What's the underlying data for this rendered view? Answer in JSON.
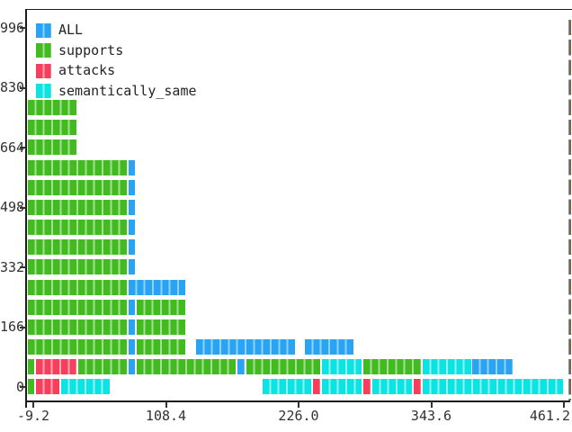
{
  "palette": {
    "ALL": {
      "main": "#29a3f2",
      "light": "#93d2f8"
    },
    "supports": {
      "main": "#41bb20",
      "light": "#a6de94"
    },
    "attacks": {
      "main": "#f83e5d",
      "light": "#fba9b5"
    },
    "semantically_same": {
      "main": "#0ce3e3",
      "light": "#94f1ef"
    },
    "axis": "#1c1c1c",
    "tick_text": "#323232",
    "right_frame_brown": "#9a5b2b",
    "right_frame_blue": "#4a9fd8"
  },
  "legend": {
    "items": [
      {
        "name": "all",
        "label": "ALL",
        "category": "ALL"
      },
      {
        "name": "supports",
        "label": "supports",
        "category": "supports"
      },
      {
        "name": "attacks",
        "label": "attacks",
        "category": "attacks"
      },
      {
        "name": "semantically-same",
        "label": "semantically_same",
        "category": "semantically_same"
      }
    ]
  },
  "chart_data": {
    "type": "bar",
    "orientation": "horizontal",
    "style": "unit-cell blocks (terminal/plotext-like)",
    "title": "",
    "xlabel": "",
    "ylabel": "",
    "grid": false,
    "legend_position": "upper-left",
    "x_axis": {
      "tick_labels": [
        "-9.2",
        "108.4",
        "226.0",
        "343.6",
        "461.2"
      ],
      "tick_values": [
        -9.2,
        108.4,
        226.0,
        343.6,
        461.2
      ],
      "range": [
        -9.2,
        461.2
      ]
    },
    "y_axis": {
      "tick_labels": [
        "996",
        "830",
        "664",
        "498",
        "332",
        "166",
        "0"
      ],
      "tick_values": [
        996,
        830,
        664,
        498,
        332,
        166,
        0
      ],
      "range": [
        0,
        996
      ]
    },
    "cell_value_x": 7.4,
    "rows_order": "top_to_bottom",
    "rows": [
      {
        "y_value": 774.7,
        "segments": [
          {
            "category": "supports",
            "cells": 6
          }
        ]
      },
      {
        "y_value": 719.3,
        "segments": [
          {
            "category": "supports",
            "cells": 6
          }
        ]
      },
      {
        "y_value": 664.0,
        "segments": [
          {
            "category": "supports",
            "cells": 6
          }
        ]
      },
      {
        "y_value": 608.7,
        "segments": [
          {
            "category": "supports",
            "cells": 12
          },
          {
            "category": "ALL",
            "cells": 1
          }
        ]
      },
      {
        "y_value": 553.3,
        "segments": [
          {
            "category": "supports",
            "cells": 12
          },
          {
            "category": "ALL",
            "cells": 1
          }
        ]
      },
      {
        "y_value": 498.0,
        "segments": [
          {
            "category": "supports",
            "cells": 12
          },
          {
            "category": "ALL",
            "cells": 1
          }
        ]
      },
      {
        "y_value": 442.7,
        "segments": [
          {
            "category": "supports",
            "cells": 12
          },
          {
            "category": "ALL",
            "cells": 1
          }
        ]
      },
      {
        "y_value": 387.3,
        "segments": [
          {
            "category": "supports",
            "cells": 12
          },
          {
            "category": "ALL",
            "cells": 1
          }
        ]
      },
      {
        "y_value": 332.0,
        "segments": [
          {
            "category": "supports",
            "cells": 12
          },
          {
            "category": "ALL",
            "cells": 1
          }
        ]
      },
      {
        "y_value": 276.7,
        "segments": [
          {
            "category": "supports",
            "cells": 12
          },
          {
            "category": "ALL",
            "cells": 7
          }
        ]
      },
      {
        "y_value": 221.3,
        "segments": [
          {
            "category": "supports",
            "cells": 12
          },
          {
            "category": "ALL",
            "cells": 1
          },
          {
            "category": "supports",
            "cells": 6
          }
        ]
      },
      {
        "y_value": 166.0,
        "segments": [
          {
            "category": "supports",
            "cells": 12
          },
          {
            "category": "ALL",
            "cells": 1
          },
          {
            "category": "supports",
            "cells": 6
          }
        ]
      },
      {
        "y_value": 110.7,
        "segments": [
          {
            "category": "supports",
            "cells": 12
          },
          {
            "category": "ALL",
            "cells": 1
          },
          {
            "category": "supports",
            "cells": 6
          },
          {
            "category": "gap",
            "cells": 1
          },
          {
            "category": "ALL",
            "cells": 12
          },
          {
            "category": "gap",
            "cells": 1
          },
          {
            "category": "ALL",
            "cells": 6
          }
        ]
      },
      {
        "y_value": 55.3,
        "segments": [
          {
            "category": "supports",
            "cells": 1
          },
          {
            "category": "attacks",
            "cells": 5
          },
          {
            "category": "supports",
            "cells": 6
          },
          {
            "category": "ALL",
            "cells": 1
          },
          {
            "category": "supports",
            "cells": 12
          },
          {
            "category": "ALL",
            "cells": 1
          },
          {
            "category": "supports",
            "cells": 9
          },
          {
            "category": "semantically_same",
            "cells": 5
          },
          {
            "category": "supports",
            "cells": 7
          },
          {
            "category": "semantically_same",
            "cells": 6
          },
          {
            "category": "ALL",
            "cells": 5
          }
        ]
      },
      {
        "y_value": 0.0,
        "segments": [
          {
            "category": "supports",
            "cells": 1
          },
          {
            "category": "attacks",
            "cells": 3
          },
          {
            "category": "semantically_same",
            "cells": 6
          },
          {
            "category": "gap",
            "cells": 18
          },
          {
            "category": "semantically_same",
            "cells": 6
          },
          {
            "category": "attacks",
            "cells": 1
          },
          {
            "category": "semantically_same",
            "cells": 5
          },
          {
            "category": "attacks",
            "cells": 1
          },
          {
            "category": "semantically_same",
            "cells": 5
          },
          {
            "category": "attacks",
            "cells": 1
          },
          {
            "category": "semantically_same",
            "cells": 17
          }
        ]
      }
    ]
  }
}
